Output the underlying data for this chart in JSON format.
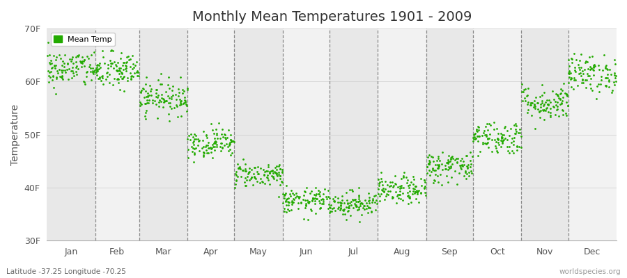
{
  "title": "Monthly Mean Temperatures 1901 - 2009",
  "ylabel": "Temperature",
  "xlabel_labels": [
    "Jan",
    "Feb",
    "Mar",
    "Apr",
    "May",
    "Jun",
    "Jul",
    "Aug",
    "Sep",
    "Oct",
    "Nov",
    "Dec"
  ],
  "footer_left": "Latitude -37.25 Longitude -70.25",
  "footer_right": "worldspecies.org",
  "legend_label": "Mean Temp",
  "ylim_min": 30,
  "ylim_max": 70,
  "ytick_labels": [
    "30F",
    "40F",
    "50F",
    "60F",
    "70F"
  ],
  "ytick_values": [
    30,
    40,
    50,
    60,
    70
  ],
  "dot_color": "#22aa00",
  "bg_color": "#ffffff",
  "plot_bg_color": "#ffffff",
  "band_color_odd": "#e8e8e8",
  "band_color_even": "#f2f2f2",
  "n_years": 109,
  "monthly_means": [
    62.5,
    62.0,
    57.0,
    48.5,
    42.5,
    37.5,
    37.0,
    39.5,
    44.0,
    49.5,
    56.0,
    61.5
  ],
  "monthly_stds": [
    1.8,
    1.8,
    1.6,
    1.4,
    1.2,
    1.2,
    1.2,
    1.3,
    1.5,
    1.6,
    1.7,
    1.8
  ],
  "days_per_month": [
    31,
    28,
    31,
    30,
    31,
    30,
    31,
    31,
    30,
    31,
    30,
    31
  ],
  "seed": 42
}
